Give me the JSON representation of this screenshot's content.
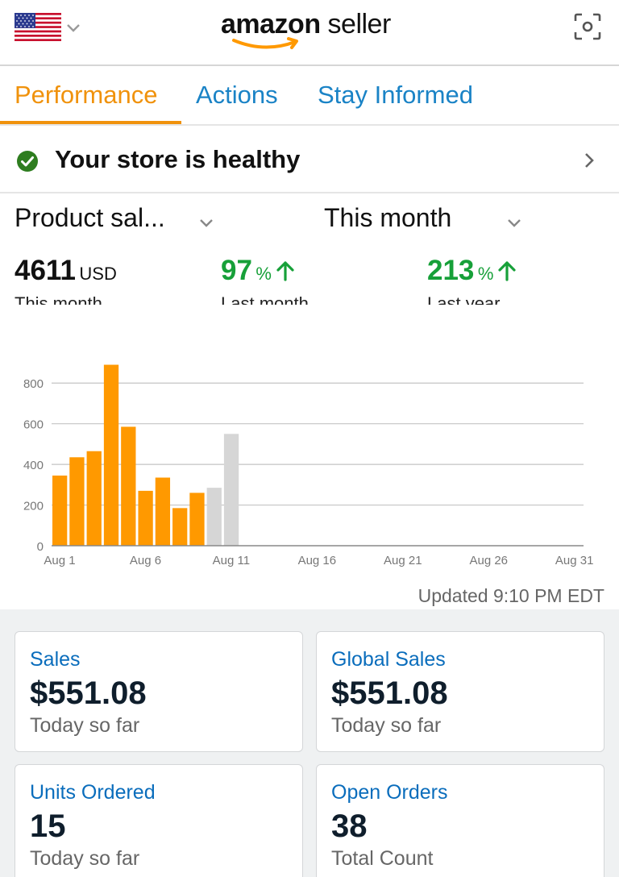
{
  "header": {
    "logo_main": "amazon",
    "logo_sub": " seller",
    "flag_icon": "us-flag-icon",
    "scan_icon": "scan-icon"
  },
  "tabs": [
    {
      "label": "Performance",
      "active": true
    },
    {
      "label": "Actions",
      "active": false
    },
    {
      "label": "Stay Informed",
      "active": false
    }
  ],
  "health": {
    "text": "Your store is healthy"
  },
  "selectors": {
    "metric": "Product sal...",
    "period": "This month"
  },
  "stats": {
    "main_value": "4611",
    "main_unit": "USD",
    "main_label": "This month",
    "last_month_value": "97",
    "last_month_unit": "%",
    "last_month_label": "Last month",
    "last_year_value": "213",
    "last_year_unit": "%",
    "last_year_label": "Last year"
  },
  "chart_data": {
    "type": "bar",
    "categories": [
      "Aug 1",
      "Aug 2",
      "Aug 3",
      "Aug 4",
      "Aug 5",
      "Aug 6",
      "Aug 7",
      "Aug 8",
      "Aug 9",
      "Aug 10",
      "Aug 11"
    ],
    "values": [
      345,
      435,
      465,
      890,
      585,
      270,
      335,
      185,
      260,
      285,
      550
    ],
    "bar_colors": [
      "#ff9900",
      "#ff9900",
      "#ff9900",
      "#ff9900",
      "#ff9900",
      "#ff9900",
      "#ff9900",
      "#ff9900",
      "#ff9900",
      "#d6d6d6",
      "#d6d6d6"
    ],
    "x_tick_labels": [
      "Aug 1",
      "Aug 6",
      "Aug 11",
      "Aug 16",
      "Aug 21",
      "Aug 26",
      "Aug 31"
    ],
    "x_tick_days": [
      1,
      6,
      11,
      16,
      21,
      26,
      31
    ],
    "y_ticks": [
      0,
      200,
      400,
      600,
      800
    ],
    "ylim": [
      0,
      900
    ],
    "xlim_days": [
      1,
      31
    ],
    "grid": true
  },
  "updated_text": "Updated 9:10 PM EDT",
  "cards": [
    {
      "title": "Sales",
      "value": "$551.08",
      "sub": "Today so far"
    },
    {
      "title": "Global Sales",
      "value": "$551.08",
      "sub": "Today so far"
    },
    {
      "title": "Units Ordered",
      "value": "15",
      "sub": "Today so far"
    },
    {
      "title": "Open Orders",
      "value": "38",
      "sub": "Total Count"
    }
  ]
}
